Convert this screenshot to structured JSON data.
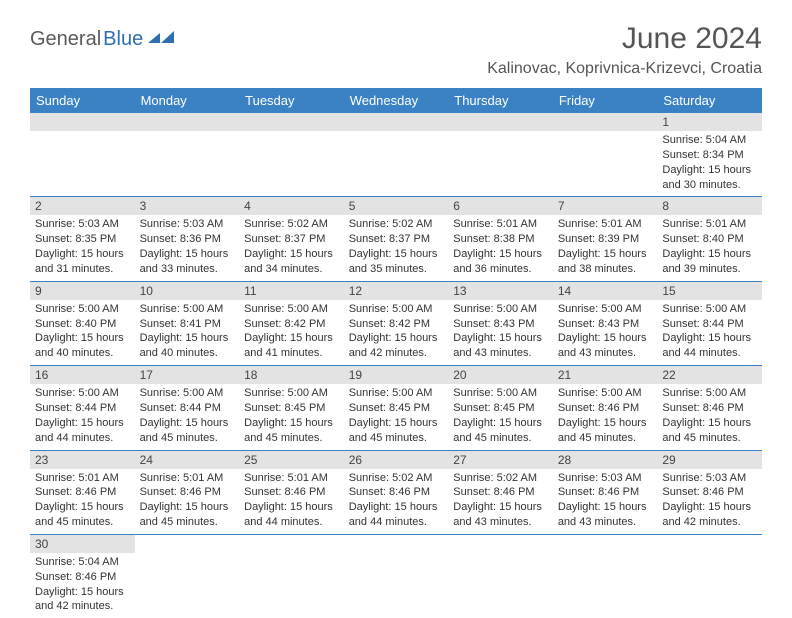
{
  "brand": {
    "part1": "General",
    "part2": "Blue"
  },
  "title": "June 2024",
  "location": "Kalinovac, Koprivnica-Krizevci, Croatia",
  "colors": {
    "header_bg": "#3b82c4",
    "header_fg": "#ffffff",
    "daynum_bg": "#e3e3e3",
    "rule": "#3b82c4",
    "text": "#333333",
    "title_fg": "#555555",
    "brand_gray": "#5a5a5a",
    "brand_blue": "#2f6fb0"
  },
  "day_headers": [
    "Sunday",
    "Monday",
    "Tuesday",
    "Wednesday",
    "Thursday",
    "Friday",
    "Saturday"
  ],
  "weeks": [
    [
      {
        "blank": true
      },
      {
        "blank": true
      },
      {
        "blank": true
      },
      {
        "blank": true
      },
      {
        "blank": true
      },
      {
        "blank": true
      },
      {
        "n": "1",
        "sr": "Sunrise: 5:04 AM",
        "ss": "Sunset: 8:34 PM",
        "d1": "Daylight: 15 hours",
        "d2": "and 30 minutes."
      }
    ],
    [
      {
        "n": "2",
        "sr": "Sunrise: 5:03 AM",
        "ss": "Sunset: 8:35 PM",
        "d1": "Daylight: 15 hours",
        "d2": "and 31 minutes."
      },
      {
        "n": "3",
        "sr": "Sunrise: 5:03 AM",
        "ss": "Sunset: 8:36 PM",
        "d1": "Daylight: 15 hours",
        "d2": "and 33 minutes."
      },
      {
        "n": "4",
        "sr": "Sunrise: 5:02 AM",
        "ss": "Sunset: 8:37 PM",
        "d1": "Daylight: 15 hours",
        "d2": "and 34 minutes."
      },
      {
        "n": "5",
        "sr": "Sunrise: 5:02 AM",
        "ss": "Sunset: 8:37 PM",
        "d1": "Daylight: 15 hours",
        "d2": "and 35 minutes."
      },
      {
        "n": "6",
        "sr": "Sunrise: 5:01 AM",
        "ss": "Sunset: 8:38 PM",
        "d1": "Daylight: 15 hours",
        "d2": "and 36 minutes."
      },
      {
        "n": "7",
        "sr": "Sunrise: 5:01 AM",
        "ss": "Sunset: 8:39 PM",
        "d1": "Daylight: 15 hours",
        "d2": "and 38 minutes."
      },
      {
        "n": "8",
        "sr": "Sunrise: 5:01 AM",
        "ss": "Sunset: 8:40 PM",
        "d1": "Daylight: 15 hours",
        "d2": "and 39 minutes."
      }
    ],
    [
      {
        "n": "9",
        "sr": "Sunrise: 5:00 AM",
        "ss": "Sunset: 8:40 PM",
        "d1": "Daylight: 15 hours",
        "d2": "and 40 minutes."
      },
      {
        "n": "10",
        "sr": "Sunrise: 5:00 AM",
        "ss": "Sunset: 8:41 PM",
        "d1": "Daylight: 15 hours",
        "d2": "and 40 minutes."
      },
      {
        "n": "11",
        "sr": "Sunrise: 5:00 AM",
        "ss": "Sunset: 8:42 PM",
        "d1": "Daylight: 15 hours",
        "d2": "and 41 minutes."
      },
      {
        "n": "12",
        "sr": "Sunrise: 5:00 AM",
        "ss": "Sunset: 8:42 PM",
        "d1": "Daylight: 15 hours",
        "d2": "and 42 minutes."
      },
      {
        "n": "13",
        "sr": "Sunrise: 5:00 AM",
        "ss": "Sunset: 8:43 PM",
        "d1": "Daylight: 15 hours",
        "d2": "and 43 minutes."
      },
      {
        "n": "14",
        "sr": "Sunrise: 5:00 AM",
        "ss": "Sunset: 8:43 PM",
        "d1": "Daylight: 15 hours",
        "d2": "and 43 minutes."
      },
      {
        "n": "15",
        "sr": "Sunrise: 5:00 AM",
        "ss": "Sunset: 8:44 PM",
        "d1": "Daylight: 15 hours",
        "d2": "and 44 minutes."
      }
    ],
    [
      {
        "n": "16",
        "sr": "Sunrise: 5:00 AM",
        "ss": "Sunset: 8:44 PM",
        "d1": "Daylight: 15 hours",
        "d2": "and 44 minutes."
      },
      {
        "n": "17",
        "sr": "Sunrise: 5:00 AM",
        "ss": "Sunset: 8:44 PM",
        "d1": "Daylight: 15 hours",
        "d2": "and 45 minutes."
      },
      {
        "n": "18",
        "sr": "Sunrise: 5:00 AM",
        "ss": "Sunset: 8:45 PM",
        "d1": "Daylight: 15 hours",
        "d2": "and 45 minutes."
      },
      {
        "n": "19",
        "sr": "Sunrise: 5:00 AM",
        "ss": "Sunset: 8:45 PM",
        "d1": "Daylight: 15 hours",
        "d2": "and 45 minutes."
      },
      {
        "n": "20",
        "sr": "Sunrise: 5:00 AM",
        "ss": "Sunset: 8:45 PM",
        "d1": "Daylight: 15 hours",
        "d2": "and 45 minutes."
      },
      {
        "n": "21",
        "sr": "Sunrise: 5:00 AM",
        "ss": "Sunset: 8:46 PM",
        "d1": "Daylight: 15 hours",
        "d2": "and 45 minutes."
      },
      {
        "n": "22",
        "sr": "Sunrise: 5:00 AM",
        "ss": "Sunset: 8:46 PM",
        "d1": "Daylight: 15 hours",
        "d2": "and 45 minutes."
      }
    ],
    [
      {
        "n": "23",
        "sr": "Sunrise: 5:01 AM",
        "ss": "Sunset: 8:46 PM",
        "d1": "Daylight: 15 hours",
        "d2": "and 45 minutes."
      },
      {
        "n": "24",
        "sr": "Sunrise: 5:01 AM",
        "ss": "Sunset: 8:46 PM",
        "d1": "Daylight: 15 hours",
        "d2": "and 45 minutes."
      },
      {
        "n": "25",
        "sr": "Sunrise: 5:01 AM",
        "ss": "Sunset: 8:46 PM",
        "d1": "Daylight: 15 hours",
        "d2": "and 44 minutes."
      },
      {
        "n": "26",
        "sr": "Sunrise: 5:02 AM",
        "ss": "Sunset: 8:46 PM",
        "d1": "Daylight: 15 hours",
        "d2": "and 44 minutes."
      },
      {
        "n": "27",
        "sr": "Sunrise: 5:02 AM",
        "ss": "Sunset: 8:46 PM",
        "d1": "Daylight: 15 hours",
        "d2": "and 43 minutes."
      },
      {
        "n": "28",
        "sr": "Sunrise: 5:03 AM",
        "ss": "Sunset: 8:46 PM",
        "d1": "Daylight: 15 hours",
        "d2": "and 43 minutes."
      },
      {
        "n": "29",
        "sr": "Sunrise: 5:03 AM",
        "ss": "Sunset: 8:46 PM",
        "d1": "Daylight: 15 hours",
        "d2": "and 42 minutes."
      }
    ],
    [
      {
        "n": "30",
        "sr": "Sunrise: 5:04 AM",
        "ss": "Sunset: 8:46 PM",
        "d1": "Daylight: 15 hours",
        "d2": "and 42 minutes."
      },
      {
        "blank": true
      },
      {
        "blank": true
      },
      {
        "blank": true
      },
      {
        "blank": true
      },
      {
        "blank": true
      },
      {
        "blank": true
      }
    ]
  ]
}
